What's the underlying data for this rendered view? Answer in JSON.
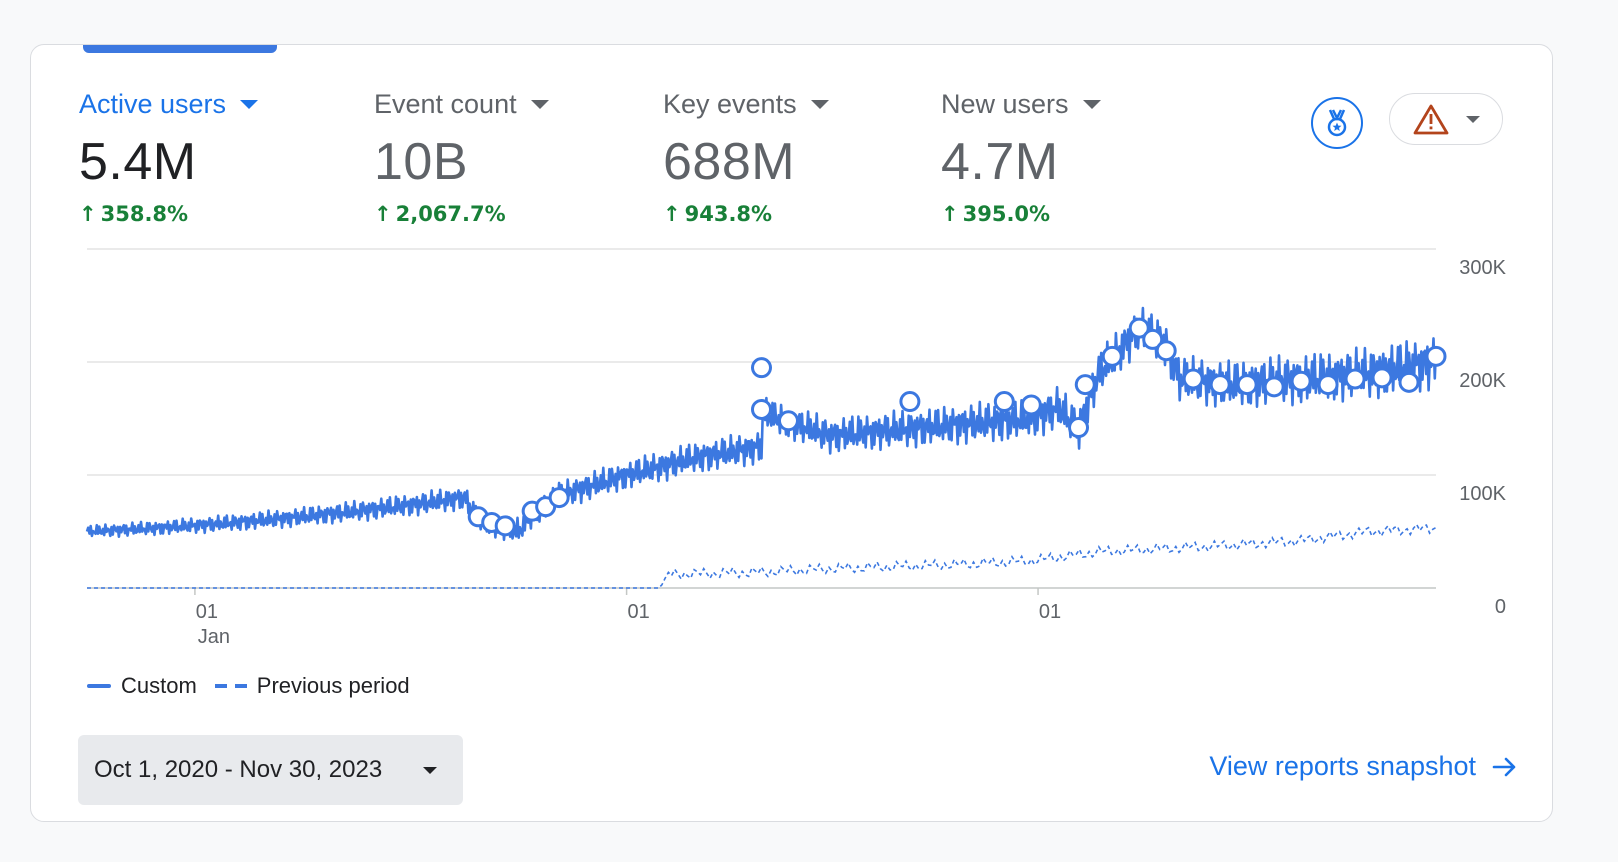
{
  "metrics": [
    {
      "label": "Active users",
      "value": "5.4M",
      "change": "358.8%",
      "active": true
    },
    {
      "label": "Event count",
      "value": "10B",
      "change": "2,067.7%",
      "active": false
    },
    {
      "label": "Key events",
      "value": "688M",
      "change": "943.8%",
      "active": false
    },
    {
      "label": "New users",
      "value": "4.7M",
      "change": "395.0%",
      "active": false
    }
  ],
  "icons": {
    "insights": "medal-badge-icon",
    "alert": "warning-triangle-icon",
    "alert_dropdown": "chevron-down-icon",
    "date_dropdown": "chevron-down-icon",
    "link_arrow": "arrow-right-icon"
  },
  "colors": {
    "accent": "#1a73e8",
    "series": "#3c78e0",
    "positive": "#188038",
    "warning": "#b3441c"
  },
  "legend": {
    "custom": "Custom",
    "previous": "Previous period"
  },
  "date_range": "Oct 1, 2020 - Nov 30, 2023",
  "snapshot_link": "View reports snapshot",
  "chart_data": {
    "type": "line",
    "ylim": [
      0,
      300000
    ],
    "y_ticks": [
      "300K",
      "200K",
      "100K",
      "0"
    ],
    "x_ticks": [
      {
        "label": "01",
        "sublabel": "Jan"
      },
      {
        "label": "01",
        "sublabel": ""
      },
      {
        "label": "01",
        "sublabel": ""
      }
    ],
    "grid": true,
    "legend_position": "bottom-left",
    "series": [
      {
        "name": "Custom",
        "style": "solid",
        "points": [
          [
            0,
            50000
          ],
          [
            0.05,
            53000
          ],
          [
            0.1,
            57000
          ],
          [
            0.15,
            62000
          ],
          [
            0.2,
            68000
          ],
          [
            0.25,
            75000
          ],
          [
            0.28,
            80000
          ],
          [
            0.29,
            60000
          ],
          [
            0.32,
            50000
          ],
          [
            0.33,
            65000
          ],
          [
            0.35,
            82000
          ],
          [
            0.4,
            100000
          ],
          [
            0.45,
            115000
          ],
          [
            0.5,
            125000
          ],
          [
            0.5,
            190000
          ],
          [
            0.5,
            155000
          ],
          [
            0.55,
            135000
          ],
          [
            0.6,
            140000
          ],
          [
            0.65,
            145000
          ],
          [
            0.7,
            150000
          ],
          [
            0.72,
            160000
          ],
          [
            0.735,
            140000
          ],
          [
            0.75,
            190000
          ],
          [
            0.78,
            230000
          ],
          [
            0.8,
            215000
          ],
          [
            0.81,
            185000
          ],
          [
            0.85,
            180000
          ],
          [
            0.9,
            185000
          ],
          [
            0.95,
            190000
          ],
          [
            1.0,
            200000
          ]
        ],
        "markers": [
          [
            0.29,
            63000
          ],
          [
            0.3,
            58000
          ],
          [
            0.31,
            55000
          ],
          [
            0.33,
            68000
          ],
          [
            0.34,
            72000
          ],
          [
            0.35,
            80000
          ],
          [
            0.5,
            195000
          ],
          [
            0.5,
            158000
          ],
          [
            0.52,
            148000
          ],
          [
            0.61,
            165000
          ],
          [
            0.68,
            165000
          ],
          [
            0.7,
            162000
          ],
          [
            0.735,
            142000
          ],
          [
            0.74,
            180000
          ],
          [
            0.76,
            205000
          ],
          [
            0.78,
            230000
          ],
          [
            0.79,
            220000
          ],
          [
            0.8,
            210000
          ],
          [
            0.82,
            185000
          ],
          [
            0.84,
            180000
          ],
          [
            0.86,
            180000
          ],
          [
            0.88,
            178000
          ],
          [
            0.9,
            183000
          ],
          [
            0.92,
            180000
          ],
          [
            0.94,
            185000
          ],
          [
            0.96,
            186000
          ],
          [
            0.98,
            182000
          ],
          [
            1.0,
            205000
          ]
        ]
      },
      {
        "name": "Previous period",
        "style": "dashed",
        "points": [
          [
            0,
            0
          ],
          [
            0.425,
            0
          ],
          [
            0.43,
            12000
          ],
          [
            0.5,
            14000
          ],
          [
            0.55,
            17000
          ],
          [
            0.6,
            19000
          ],
          [
            0.65,
            21000
          ],
          [
            0.7,
            24000
          ],
          [
            0.75,
            32000
          ],
          [
            0.8,
            35000
          ],
          [
            0.85,
            38000
          ],
          [
            0.9,
            42000
          ],
          [
            0.95,
            50000
          ],
          [
            1.0,
            53000
          ]
        ]
      }
    ]
  }
}
